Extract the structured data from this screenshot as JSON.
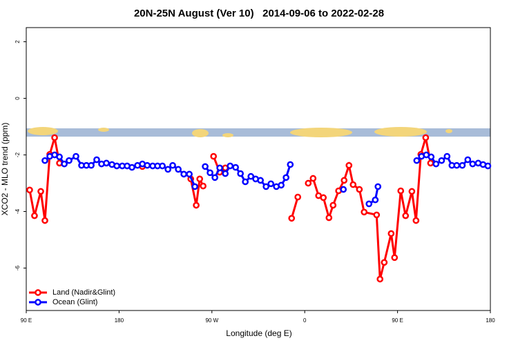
{
  "chart_data": {
    "type": "line",
    "title": "20N-25N August (Ver 10)   2014-09-06 to 2022-02-28",
    "x_label": "Longitude (deg E)",
    "y_label": "XCO2 - MLO trend (ppm)",
    "xlim": [
      90,
      540
    ],
    "xticks": [
      {
        "value": 90,
        "label": "90 E"
      },
      180,
      {
        "value": 270,
        "label": "90 W"
      },
      {
        "value": 360,
        "label": "0"
      },
      {
        "value": 450,
        "label": "90 E"
      },
      {
        "value": 540,
        "label": "180"
      }
    ],
    "ylim": [
      -7.5,
      2.5
    ],
    "yticks": [
      2,
      0,
      -2,
      -4,
      -6
    ],
    "legend": "bottom-left",
    "series": [
      {
        "name": "Land (Nadir&Glint)",
        "color": "#ff0000",
        "x": [
          93.3,
          98.0,
          104.1,
          108.1,
          112.8,
          117.5,
          122.2,
          null,
          202.6,
          null,
          249.5,
          254.8,
          258.2,
          261.5,
          null,
          271.6,
          277.6,
          283.0,
          null,
          347.3,
          353.3,
          null,
          363.4,
          368.1,
          373.4,
          378.1,
          383.5,
          387.5,
          392.8,
          398.2,
          402.9,
          406.9,
          413.0,
          417.6,
          429.7,
          433.0,
          437.1,
          443.8,
          447.1,
          453.1,
          457.8,
          463.9,
          467.9,
          472.6,
          477.3,
          482.0
        ],
        "values": [
          -3.24,
          -4.15,
          -3.29,
          -4.32,
          -1.98,
          -1.39,
          -2.29,
          null,
          -2.41,
          null,
          -2.85,
          -3.78,
          -2.85,
          -3.1,
          null,
          -2.05,
          -2.61,
          -2.46,
          null,
          -4.24,
          -3.49,
          null,
          -3.0,
          -2.83,
          -3.44,
          -3.51,
          -4.22,
          -3.78,
          -3.27,
          -2.9,
          -2.37,
          -3.05,
          -3.22,
          -4.02,
          -4.12,
          -6.39,
          -5.8,
          -4.78,
          -5.63,
          -3.27,
          -4.15,
          -3.29,
          -4.32,
          -1.98,
          -1.39,
          -2.29
        ]
      },
      {
        "name": "Ocean (Glint)",
        "color": "#0000ff",
        "x": [
          108.1,
          112.8,
          117.5,
          122.2,
          126.9,
          131.5,
          138.2,
          143.6,
          148.3,
          153.0,
          158.3,
          163.0,
          167.7,
          173.1,
          177.8,
          183.1,
          187.8,
          192.5,
          197.9,
          202.6,
          207.3,
          212.6,
          217.3,
          222.0,
          227.4,
          232.0,
          237.4,
          242.8,
          248.1,
          253.5,
          null,
          263.5,
          268.2,
          272.9,
          277.6,
          283.0,
          287.7,
          293.0,
          297.7,
          302.4,
          307.8,
          312.4,
          317.1,
          322.5,
          327.2,
          332.5,
          337.2,
          341.9,
          346.0,
          null,
          397.5,
          null,
          422.3,
          428.4,
          431.0,
          null,
          468.6,
          473.2,
          477.9,
          482.6,
          487.3,
          492.7,
          498.0,
          502.7,
          507.4,
          512.8,
          518.1,
          522.8,
          528.2,
          532.9,
          537.6
        ],
        "values": [
          -2.2,
          -2.05,
          -2.0,
          -2.07,
          -2.32,
          -2.2,
          -2.05,
          -2.37,
          -2.37,
          -2.37,
          -2.17,
          -2.32,
          -2.29,
          -2.34,
          -2.39,
          -2.39,
          -2.39,
          -2.44,
          -2.37,
          -2.32,
          -2.37,
          -2.39,
          -2.39,
          -2.39,
          -2.51,
          -2.37,
          -2.51,
          -2.68,
          -2.68,
          -3.12,
          null,
          -2.41,
          -2.63,
          -2.8,
          -2.46,
          -2.66,
          -2.39,
          -2.44,
          -2.66,
          -2.95,
          -2.76,
          -2.85,
          -2.9,
          -3.12,
          -3.02,
          -3.12,
          -3.07,
          -2.8,
          -2.34,
          null,
          -3.22,
          null,
          -3.73,
          -3.59,
          -3.12,
          null,
          -2.2,
          -2.05,
          -2.0,
          -2.07,
          -2.32,
          -2.2,
          -2.05,
          -2.37,
          -2.37,
          -2.37,
          -2.17,
          -2.32,
          -2.29,
          -2.34,
          -2.39
        ]
      }
    ]
  }
}
